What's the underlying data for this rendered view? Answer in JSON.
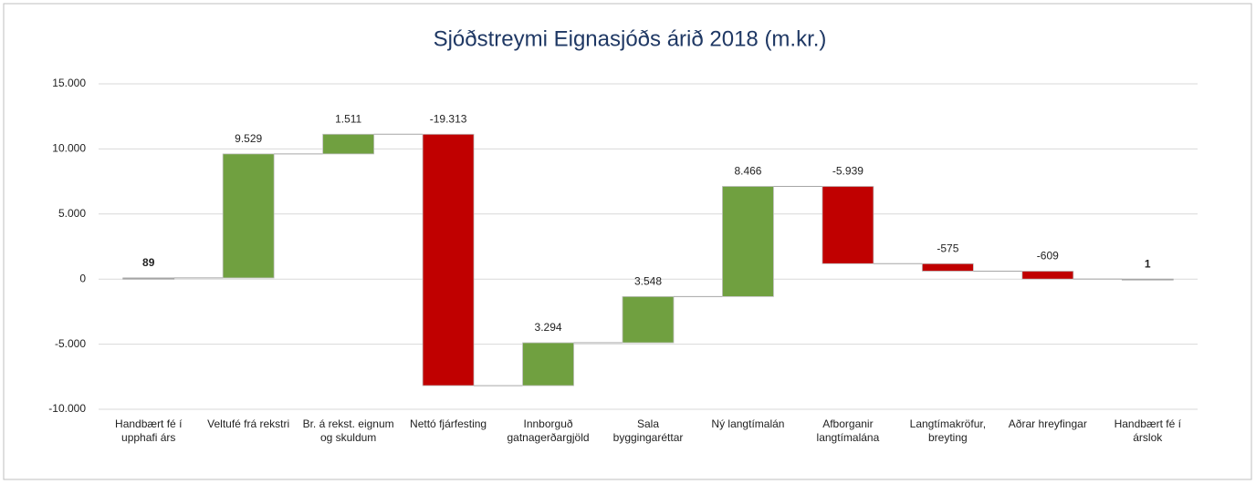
{
  "chart_data": {
    "type": "waterfall",
    "title": "Sjóðstreymi Eignasjóðs árið 2018 (m.kr.)",
    "categories": [
      "Handbært fé í upphafi árs",
      "Veltufé frá rekstri",
      "Br. á rekst. eignum og skuldum",
      "Nettó fjárfesting",
      "Innborguð gatnagerðargjöld",
      "Sala byggingaréttar",
      "Ný langtímalán",
      "Afborganir langtímalána",
      "Langtímakröfur, breyting",
      "Aðrar hreyfingar",
      "Handbært fé í árslok"
    ],
    "values": [
      89,
      9529,
      1511,
      -19313,
      3294,
      3548,
      8466,
      -5939,
      -575,
      -609,
      1
    ],
    "value_labels": [
      "89",
      "9.529",
      "1.511",
      "-19.313",
      "3.294",
      "3.548",
      "8.466",
      "-5.939",
      "-575",
      "-609",
      "1"
    ],
    "totals": [
      true,
      false,
      false,
      false,
      false,
      false,
      false,
      false,
      false,
      false,
      true
    ],
    "increase_color": "#70a040",
    "decrease_color": "#c00000",
    "total_color": "#a5a5a5",
    "ylim": [
      -10000,
      15000
    ],
    "yticks": [
      {
        "value": -10000,
        "label": "-10.000"
      },
      {
        "value": -5000,
        "label": "-5.000"
      },
      0,
      {
        "value": 5000,
        "label": "5.000"
      },
      {
        "value": 10000,
        "label": "10.000"
      },
      {
        "value": 15000,
        "label": "15.000"
      }
    ],
    "grid": true
  }
}
